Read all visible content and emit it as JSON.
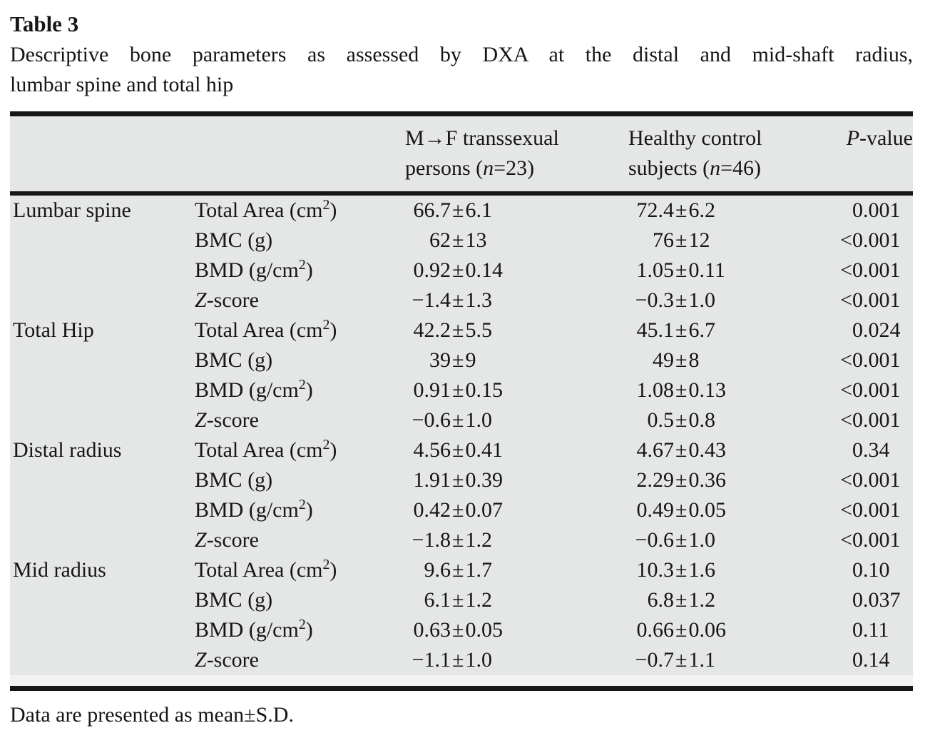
{
  "page": {
    "title": "Table 3",
    "caption_line1": "Descriptive bone parameters as assessed by DXA at the distal and mid-shaft radius,",
    "caption_line2": "lumbar spine and total hip",
    "footnote": "Data are presented as mean±S.D."
  },
  "colors": {
    "band": "#e5e6e6",
    "rule": "#161616",
    "text": "#161616"
  },
  "table": {
    "columns": {
      "site_header": "",
      "parameter_header": "",
      "group1": {
        "line1": "M→F transsexual",
        "line2_pre": "persons (",
        "line2_it": "n",
        "line2_post": "=23)"
      },
      "group2": {
        "line1": "Healthy control",
        "line2_pre": "subjects (",
        "line2_it": "n",
        "line2_post": "=46)"
      },
      "pvalue": {
        "it": "P",
        "post": "-value"
      }
    },
    "sections": [
      {
        "site": "Lumbar spine",
        "rows": [
          {
            "parameter": "Total Area (cm^2)",
            "mf": "66.7±6.1",
            "control": "72.4±6.2",
            "p": "0.001"
          },
          {
            "parameter": "BMC (g)",
            "mf": "62±13",
            "control": "76±12",
            "p": "<0.001"
          },
          {
            "parameter": "BMD (g/cm^2)",
            "mf": "0.92±0.14",
            "control": "1.05±0.11",
            "p": "<0.001"
          },
          {
            "parameter": "Z-score",
            "mf": "−1.4±1.3",
            "control": "−0.3±1.0",
            "p": "<0.001"
          }
        ]
      },
      {
        "site": "Total Hip",
        "rows": [
          {
            "parameter": "Total Area (cm^2)",
            "mf": "42.2±5.5",
            "control": "45.1±6.7",
            "p": "0.024"
          },
          {
            "parameter": "BMC (g)",
            "mf": "39±9",
            "control": "49±8",
            "p": "<0.001"
          },
          {
            "parameter": "BMD (g/cm^2)",
            "mf": "0.91±0.15",
            "control": "1.08±0.13",
            "p": "<0.001"
          },
          {
            "parameter": "Z-score",
            "mf": "−0.6±1.0",
            "control": "0.5±0.8",
            "p": "<0.001"
          }
        ]
      },
      {
        "site": "Distal radius",
        "rows": [
          {
            "parameter": "Total Area (cm^2)",
            "mf": "4.56±0.41",
            "control": "4.67±0.43",
            "p": "0.34"
          },
          {
            "parameter": "BMC (g)",
            "mf": "1.91±0.39",
            "control": "2.29±0.36",
            "p": "<0.001"
          },
          {
            "parameter": "BMD (g/cm^2)",
            "mf": "0.42±0.07",
            "control": "0.49±0.05",
            "p": "<0.001"
          },
          {
            "parameter": "Z-score",
            "mf": "−1.8±1.2",
            "control": "−0.6±1.0",
            "p": "<0.001"
          }
        ]
      },
      {
        "site": "Mid radius",
        "rows": [
          {
            "parameter": "Total Area (cm^2)",
            "mf": "9.6±1.7",
            "control": "10.3±1.6",
            "p": "0.10"
          },
          {
            "parameter": "BMC (g)",
            "mf": "6.1±1.2",
            "control": "6.8±1.2",
            "p": "0.037"
          },
          {
            "parameter": "BMD (g/cm^2)",
            "mf": "0.63±0.05",
            "control": "0.66±0.06",
            "p": "0.11"
          },
          {
            "parameter": "Z-score",
            "mf": "−1.1±1.0",
            "control": "−0.7±1.1",
            "p": "0.14"
          }
        ]
      }
    ]
  }
}
